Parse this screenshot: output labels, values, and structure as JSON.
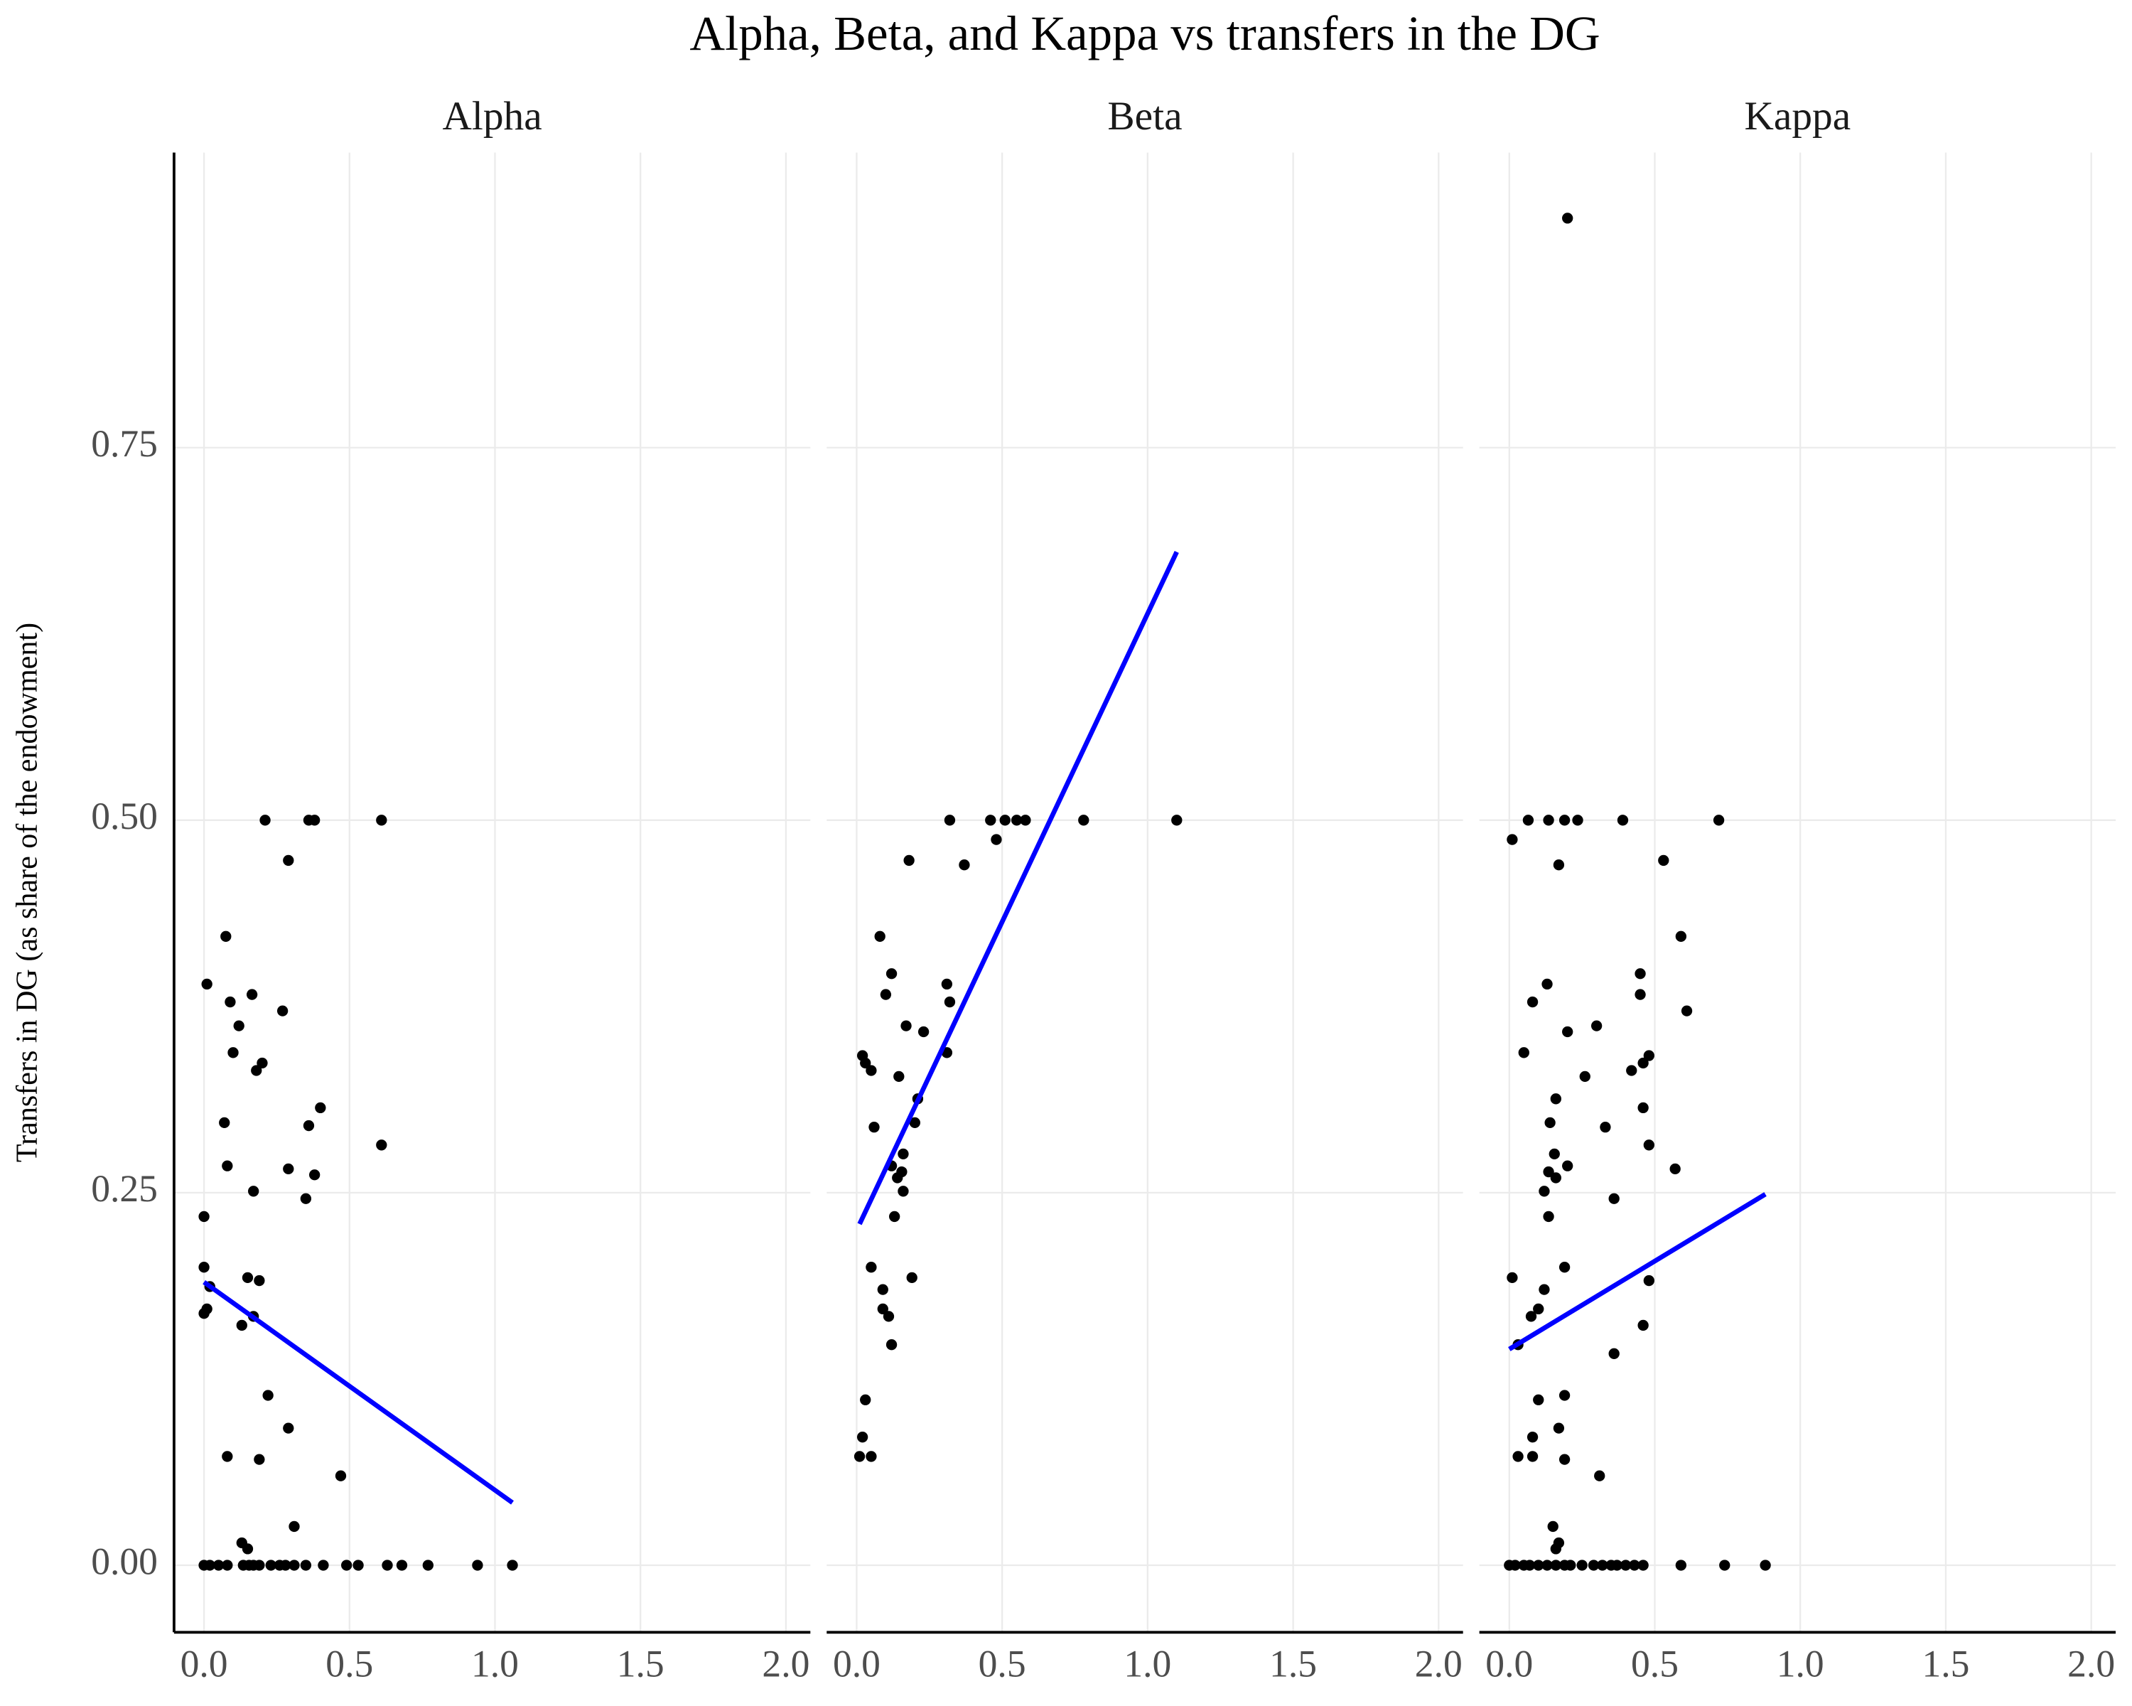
{
  "title": "Alpha, Beta, and Kappa vs transfers in the DG",
  "chart_data": [
    {
      "type": "scatter",
      "title": "Alpha",
      "y_label": "Transfers in DG (as share of the endowment)",
      "color": "#000000",
      "grid": true,
      "show_y_axis": true,
      "xlim": [
        -0.103,
        2.084
      ],
      "ylim": [
        -0.045,
        0.948
      ],
      "xticks": [
        {
          "value": 0,
          "label": "0.0"
        },
        0.5,
        {
          "value": 1,
          "label": "1.0"
        },
        1.5,
        {
          "value": 2,
          "label": "2.0"
        }
      ],
      "yticks": [
        {
          "value": 0,
          "label": "0.00"
        },
        0.25,
        {
          "value": 0.5,
          "label": "0.50"
        },
        0.75
      ],
      "x": [
        0,
        0,
        0,
        0.01,
        0.01,
        0.02,
        0.075,
        0.09,
        0.1,
        0.12,
        0.07,
        0.08,
        0.08,
        0.13,
        0.15,
        0.165,
        0.17,
        0.17,
        0.18,
        0.2,
        0.19,
        0.19,
        0.21,
        0.22,
        0.27,
        0.29,
        0.29,
        0.29,
        0.31,
        0.35,
        0.36,
        0.36,
        0.38,
        0.38,
        0.4,
        0.47,
        0.61,
        0.61,
        0.13,
        0.15,
        0,
        0.02,
        0.05,
        0.08,
        0.135,
        0.155,
        0.17,
        0.19,
        0.23,
        0.26,
        0.28,
        0.31,
        0.35,
        0.41,
        0.49,
        0.53,
        0.63,
        0.68,
        0.77,
        0.94,
        1.06
      ],
      "y": [
        0.234,
        0.2,
        0.169,
        0.172,
        0.39,
        0.187,
        0.422,
        0.378,
        0.344,
        0.362,
        0.297,
        0.268,
        0.073,
        0.161,
        0.193,
        0.383,
        0.251,
        0.167,
        0.332,
        0.337,
        0.191,
        0.071,
        0.5,
        0.114,
        0.372,
        0.473,
        0.266,
        0.092,
        0.026,
        0.246,
        0.295,
        0.5,
        0.5,
        0.262,
        0.307,
        0.06,
        0.5,
        0.282,
        0.015,
        0.011,
        0,
        0,
        0,
        0,
        0,
        0,
        0,
        0,
        0,
        0,
        0,
        0,
        0,
        0,
        0,
        0,
        0,
        0,
        0,
        0,
        0
      ],
      "fit": {
        "color": "#0000ff",
        "x": [
          0,
          1.06
        ],
        "y": [
          0.19,
          0.042
        ]
      }
    },
    {
      "type": "scatter",
      "title": "Beta",
      "color": "#000000",
      "grid": true,
      "show_y_axis": false,
      "xlim": [
        -0.103,
        2.084
      ],
      "ylim": [
        -0.045,
        0.948
      ],
      "xticks": [
        {
          "value": 0,
          "label": "0.0"
        },
        0.5,
        {
          "value": 1,
          "label": "1.0"
        },
        1.5,
        {
          "value": 2,
          "label": "2.0"
        }
      ],
      "yticks": [
        {
          "value": 0,
          "label": "0.00"
        },
        0.25,
        {
          "value": 0.5,
          "label": "0.50"
        },
        0.75
      ],
      "x": [
        0.01,
        0.05,
        0.02,
        0.03,
        0.02,
        0.03,
        0.05,
        0.06,
        0.05,
        0.08,
        0.09,
        0.09,
        0.1,
        0.11,
        0.12,
        0.12,
        0.12,
        0.13,
        0.145,
        0.14,
        0.155,
        0.16,
        0.16,
        0.17,
        0.18,
        0.19,
        0.2,
        0.21,
        0.23,
        0.31,
        0.32,
        0.32,
        0.31,
        0.37,
        0.46,
        0.48,
        0.51,
        0.55,
        0.58,
        0.78,
        1.1
      ],
      "y": [
        0.073,
        0.073,
        0.086,
        0.111,
        0.342,
        0.337,
        0.332,
        0.294,
        0.2,
        0.422,
        0.185,
        0.172,
        0.383,
        0.167,
        0.397,
        0.148,
        0.268,
        0.234,
        0.328,
        0.26,
        0.264,
        0.251,
        0.276,
        0.362,
        0.473,
        0.193,
        0.297,
        0.313,
        0.358,
        0.39,
        0.5,
        0.378,
        0.344,
        0.47,
        0.5,
        0.487,
        0.5,
        0.5,
        0.5,
        0.5,
        0.5
      ],
      "fit": {
        "color": "#0000ff",
        "x": [
          0.01,
          1.1
        ],
        "y": [
          0.229,
          0.68
        ]
      }
    },
    {
      "type": "scatter",
      "title": "Kappa",
      "color": "#000000",
      "grid": true,
      "show_y_axis": false,
      "xlim": [
        -0.103,
        2.084
      ],
      "ylim": [
        -0.045,
        0.948
      ],
      "xticks": [
        {
          "value": 0,
          "label": "0.0"
        },
        0.5,
        {
          "value": 1,
          "label": "1.0"
        },
        1.5,
        {
          "value": 2,
          "label": "2.0"
        }
      ],
      "yticks": [
        {
          "value": 0,
          "label": "0.00"
        },
        0.25,
        {
          "value": 0.5,
          "label": "0.50"
        },
        0.75
      ],
      "x": [
        0.2,
        0.01,
        0.065,
        0.135,
        0.19,
        0.235,
        0.17,
        0.39,
        0.53,
        0.72,
        0.59,
        0.61,
        0.45,
        0.45,
        0.13,
        0.08,
        0.05,
        0.2,
        0.3,
        0.26,
        0.16,
        0.14,
        0.155,
        0.135,
        0.16,
        0.2,
        0.12,
        0.135,
        0.33,
        0.36,
        0.42,
        0.46,
        0.48,
        0.46,
        0.48,
        0.57,
        0.01,
        0.12,
        0.19,
        0.1,
        0.075,
        0.03,
        0.48,
        0.46,
        0.36,
        0.1,
        0.19,
        0.17,
        0.08,
        0.03,
        0.08,
        0.19,
        0.31,
        0.15,
        0.17,
        0.16,
        0,
        0.02,
        0.05,
        0.07,
        0.1,
        0.13,
        0.16,
        0.19,
        0.21,
        0.25,
        0.29,
        0.32,
        0.35,
        0.37,
        0.4,
        0.43,
        0.46,
        0.59,
        0.74,
        0.88
      ],
      "y": [
        0.904,
        0.487,
        0.5,
        0.5,
        0.5,
        0.5,
        0.47,
        0.5,
        0.473,
        0.5,
        0.422,
        0.372,
        0.397,
        0.383,
        0.39,
        0.378,
        0.344,
        0.358,
        0.362,
        0.328,
        0.313,
        0.297,
        0.276,
        0.264,
        0.26,
        0.268,
        0.251,
        0.234,
        0.294,
        0.246,
        0.332,
        0.337,
        0.342,
        0.307,
        0.282,
        0.266,
        0.193,
        0.185,
        0.2,
        0.172,
        0.167,
        0.148,
        0.191,
        0.161,
        0.142,
        0.111,
        0.114,
        0.092,
        0.086,
        0.073,
        0.073,
        0.071,
        0.06,
        0.026,
        0.015,
        0.011,
        0,
        0,
        0,
        0,
        0,
        0,
        0,
        0,
        0,
        0,
        0,
        0,
        0,
        0,
        0,
        0,
        0,
        0,
        0,
        0
      ],
      "fit": {
        "color": "#0000ff",
        "x": [
          0,
          0.88
        ],
        "y": [
          0.145,
          0.249
        ]
      }
    }
  ]
}
